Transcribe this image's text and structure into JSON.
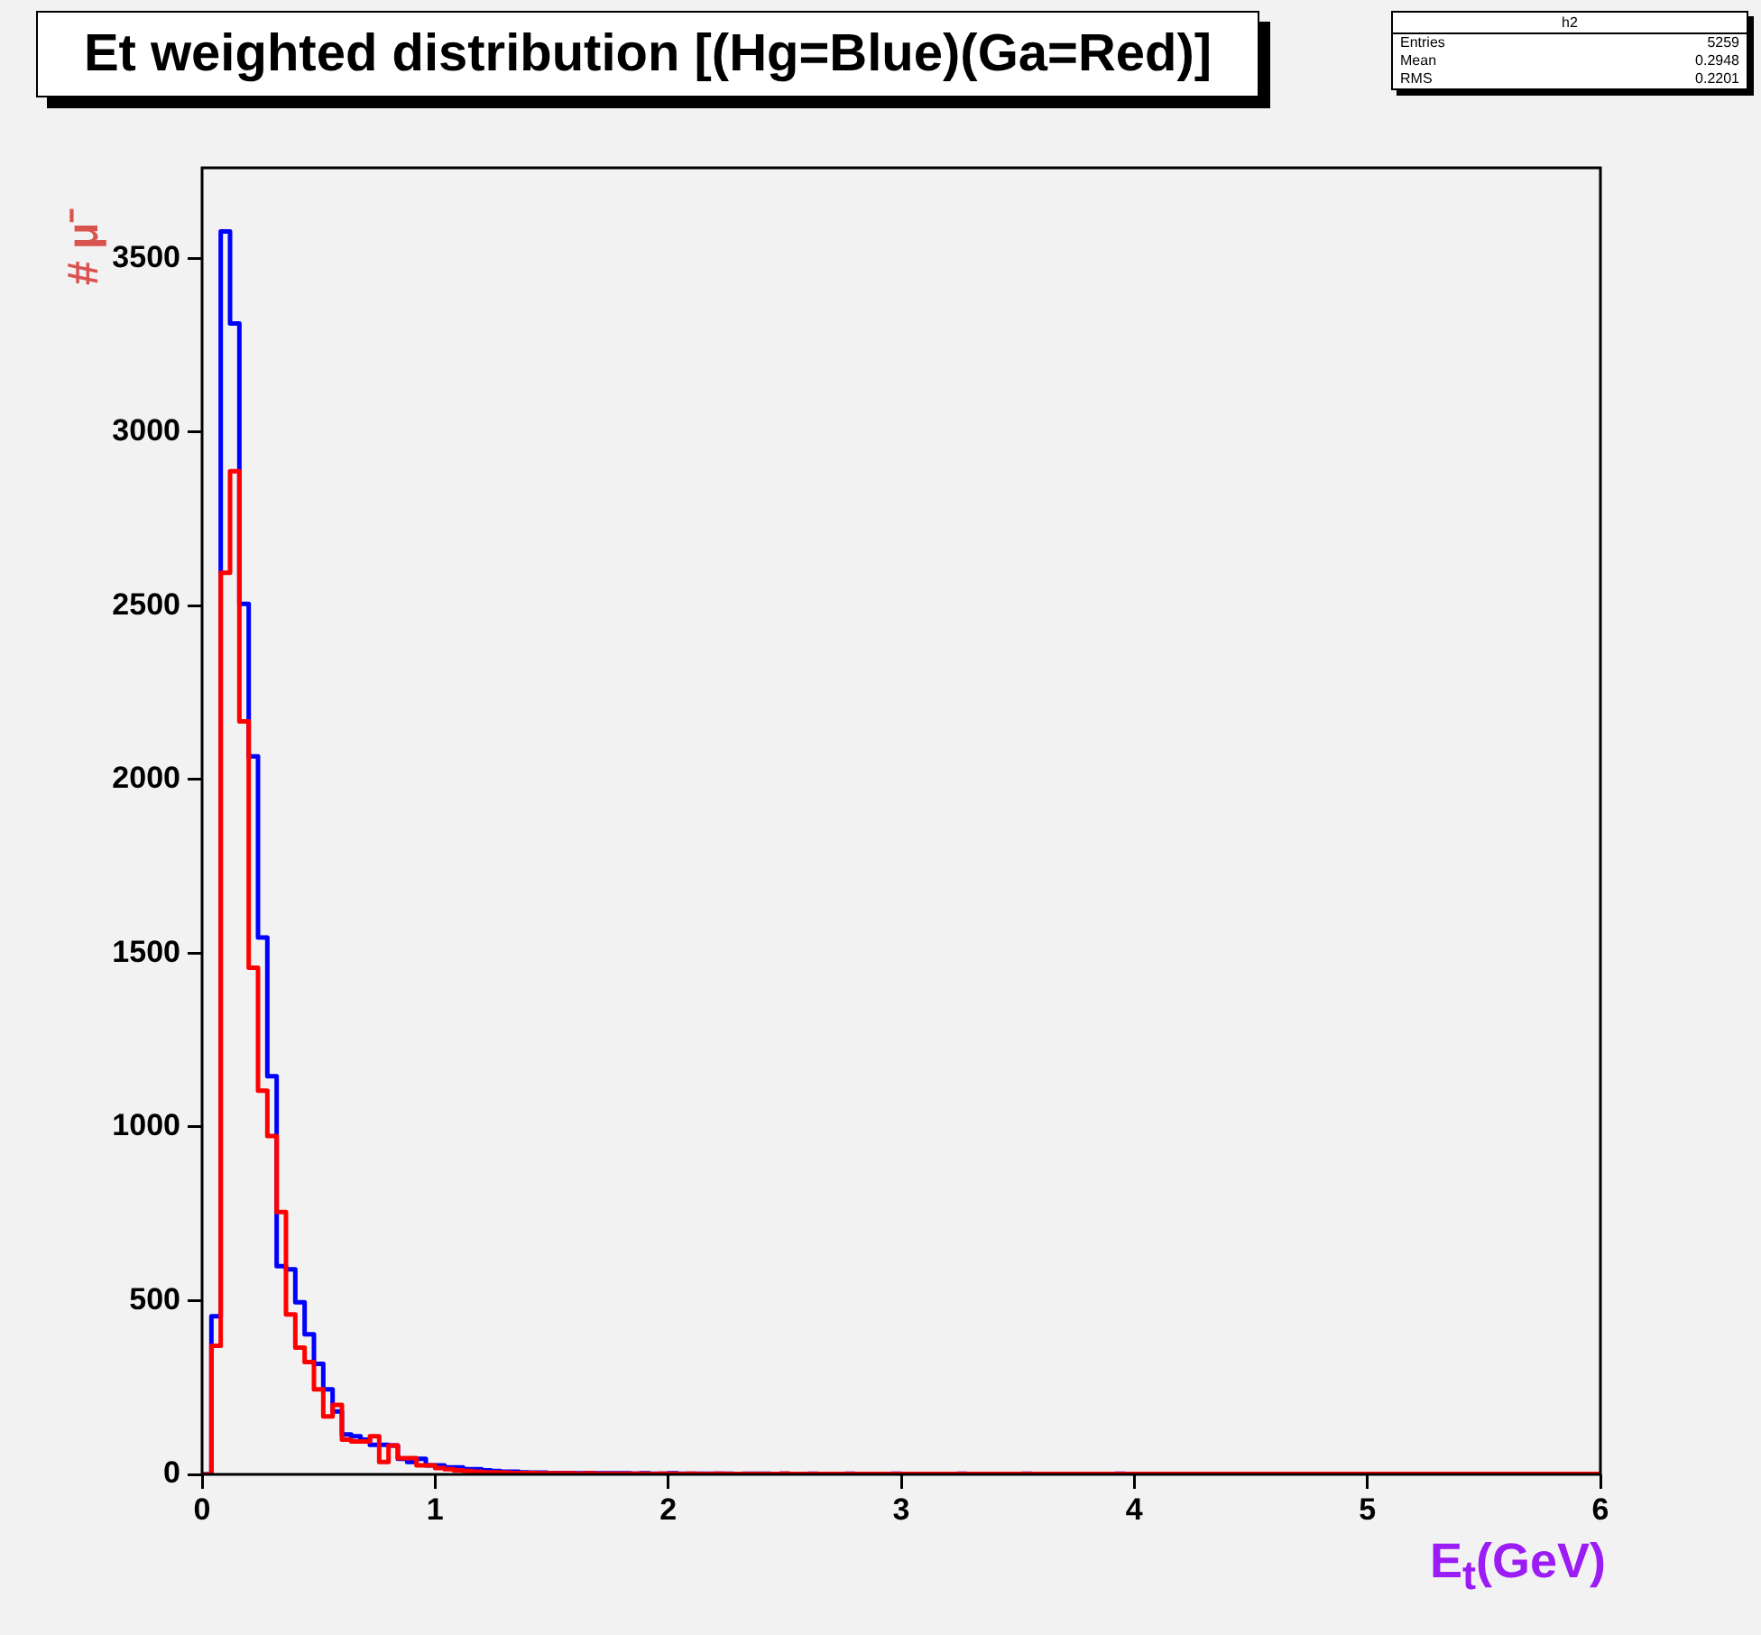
{
  "chart_data": {
    "type": "histogram",
    "title": "Et weighted distribution [(Hg=Blue)(Ga=Red)]",
    "xlabel": "E$_{t}$(GeV)",
    "ylabel": "# μ⁻",
    "annotations": [
      "h2",
      "Entries",
      "5259",
      "Mean",
      "0.2948",
      "RMS",
      "0.2201"
    ],
    "bins": [
      0,
      0.04,
      0.08,
      0.12,
      0.16,
      0.2,
      0.24,
      0.28,
      0.32,
      0.36,
      0.4,
      0.44,
      0.48,
      0.52,
      0.56,
      0.6,
      0.64,
      0.68,
      0.72,
      0.76,
      0.8,
      0.84,
      0.88,
      0.92,
      0.96,
      1,
      1.04,
      1.08,
      1.12,
      1.16,
      1.2,
      1.24,
      1.28,
      1.32,
      1.36,
      1.4,
      1.44,
      1.48,
      1.52,
      1.56,
      1.6,
      1.64,
      1.68,
      1.72,
      1.76,
      1.8,
      1.84,
      1.88,
      1.92,
      1.96,
      2,
      2.04,
      2.08,
      2.12,
      2.16,
      2.2,
      2.24,
      2.28,
      2.32,
      2.36,
      2.4,
      2.44,
      2.48,
      2.52,
      2.56,
      2.6,
      2.64,
      2.68,
      2.72,
      2.76,
      2.8,
      2.84,
      2.88,
      2.92,
      2.96,
      3,
      3.04,
      3.08,
      3.12,
      3.16,
      3.2,
      3.24,
      3.28,
      3.32,
      3.36,
      3.4,
      3.44,
      3.48,
      3.52,
      3.56,
      3.6,
      3.64,
      3.68,
      3.72,
      3.76,
      3.8,
      3.84,
      3.88,
      3.92,
      3.96,
      4,
      4.04,
      4.08,
      4.12,
      4.16,
      4.2,
      4.24,
      4.28,
      4.32,
      4.36,
      4.4,
      4.44,
      4.48,
      4.52,
      4.56,
      4.6,
      4.64,
      4.68,
      4.72,
      4.76,
      4.8,
      4.84,
      4.88,
      4.92,
      4.96,
      5,
      5.04,
      5.08,
      5.12,
      5.16,
      5.2,
      5.24,
      5.28,
      5.32,
      5.36,
      5.4,
      5.44,
      5.48,
      5.52,
      5.56,
      5.6,
      5.64,
      5.68,
      5.72,
      5.76,
      5.8,
      5.84,
      5.88,
      5.92,
      5.96,
      6
    ],
    "series": [
      {
        "color": "#0000ff",
        "values": [
          0,
          455,
          3577,
          3312,
          2505,
          2066,
          1545,
          1146,
          599,
          590,
          495,
          403,
          318,
          245,
          181,
          115,
          110,
          100,
          85,
          85,
          83,
          45,
          36,
          45,
          26,
          26,
          20,
          20,
          15,
          15,
          12,
          10,
          8,
          8,
          6,
          5,
          5,
          4,
          4,
          4,
          3,
          4,
          3,
          3,
          3,
          3,
          2,
          3,
          2,
          2,
          3,
          2,
          2,
          2,
          2,
          2,
          2,
          1,
          2,
          2,
          2,
          1,
          2,
          1,
          1,
          2,
          1,
          1,
          1,
          2,
          1,
          1,
          1,
          1,
          2,
          1,
          1,
          1,
          1,
          1,
          1,
          2,
          1,
          1,
          1,
          1,
          1,
          1,
          2,
          1,
          1,
          1,
          1,
          1,
          1,
          1,
          1,
          1,
          2,
          1,
          1,
          1,
          1,
          1,
          1,
          1,
          1,
          1,
          1,
          1,
          1,
          1,
          1,
          1,
          1,
          1,
          1,
          1,
          1,
          1,
          1,
          1,
          1,
          1,
          1,
          1,
          1,
          1,
          1,
          1,
          1,
          1,
          1,
          1,
          1,
          1,
          1,
          1,
          1,
          1,
          1,
          1,
          1,
          1,
          1,
          1,
          1,
          1,
          1,
          1
        ]
      },
      {
        "color": "#ff0000",
        "values": [
          0,
          370,
          2595,
          2887,
          2167,
          1458,
          1104,
          974,
          755,
          460,
          365,
          323,
          245,
          167,
          200,
          100,
          95,
          95,
          110,
          36,
          83,
          47,
          47,
          26,
          26,
          18,
          15,
          12,
          10,
          8,
          6,
          6,
          5,
          4,
          4,
          4,
          3,
          3,
          3,
          3,
          2,
          3,
          2,
          2,
          2,
          2,
          2,
          2,
          1,
          2,
          2,
          1,
          2,
          1,
          1,
          2,
          1,
          1,
          1,
          1,
          1,
          1,
          2,
          1,
          1,
          1,
          1,
          1,
          1,
          1,
          1,
          1,
          1,
          1,
          1,
          1,
          1,
          1,
          1,
          1,
          1,
          1,
          1,
          1,
          1,
          1,
          1,
          1,
          1,
          1,
          1,
          1,
          1,
          1,
          1,
          1,
          1,
          1,
          1,
          1,
          1,
          1,
          1,
          1,
          1,
          1,
          1,
          1,
          1,
          1,
          1,
          1,
          1,
          1,
          1,
          1,
          1,
          1,
          1,
          1,
          1,
          1,
          1,
          1,
          1,
          1,
          1,
          1,
          1,
          1,
          1,
          1,
          1,
          1,
          1,
          1,
          1,
          1,
          1,
          1,
          1,
          1,
          1,
          1,
          1,
          1,
          1,
          1,
          1,
          1
        ]
      }
    ],
    "xlim": [
      0,
      6
    ],
    "xticks": [
      0,
      1,
      2,
      3,
      4,
      5,
      6
    ],
    "ylim": [
      0,
      3760
    ],
    "yticks": [
      0,
      500,
      1000,
      1500,
      2000,
      2500,
      3000,
      3500
    ]
  }
}
